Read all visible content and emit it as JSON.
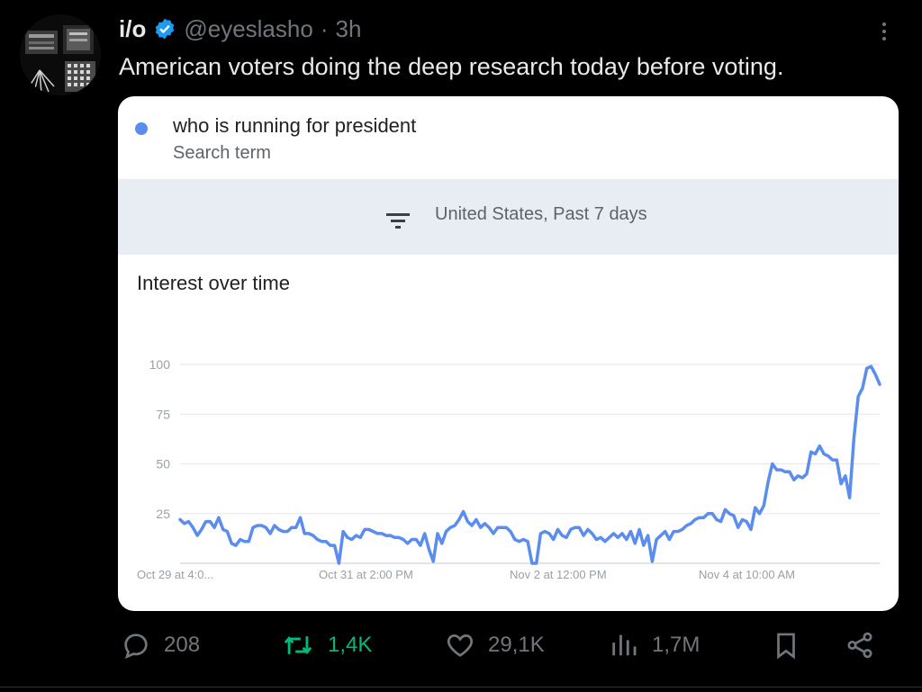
{
  "post": {
    "name": "i/o",
    "handle": "@eyeslasho",
    "separator": "·",
    "time": "3h",
    "text": "American voters doing the deep research today before voting."
  },
  "card": {
    "search_term": "who is running for president",
    "search_term_sub": "Search term",
    "filter_text": "United States, Past 7 days",
    "chart_title": "Interest over time"
  },
  "chart_data": {
    "type": "line",
    "title": "Interest over time",
    "series": [
      {
        "name": "who is running for president",
        "color": "#5b8def",
        "values": [
          22,
          20,
          21,
          18,
          14,
          17,
          21,
          21,
          18,
          23,
          17,
          16,
          10,
          9,
          12,
          11,
          11,
          18,
          19,
          19,
          18,
          15,
          19,
          17,
          16,
          16,
          18,
          18,
          23,
          15,
          15,
          14,
          12,
          11,
          11,
          9,
          9,
          0,
          16,
          13,
          12,
          14,
          13,
          17,
          17,
          16,
          15,
          15,
          14,
          14,
          13,
          13,
          12,
          10,
          12,
          12,
          9,
          15,
          7,
          1,
          15,
          10,
          16,
          18,
          19,
          22,
          26,
          21,
          19,
          22,
          18,
          20,
          18,
          15,
          18,
          18,
          18,
          16,
          12,
          11,
          12,
          11,
          0,
          0,
          15,
          16,
          15,
          12,
          17,
          14,
          13,
          17,
          18,
          18,
          14,
          17,
          15,
          12,
          13,
          11,
          13,
          15,
          13,
          15,
          12,
          16,
          10,
          17,
          9,
          14,
          1,
          12,
          14,
          16,
          12,
          16,
          16,
          17,
          19,
          20,
          22,
          23,
          23,
          25,
          25,
          22,
          21,
          27,
          25,
          24,
          18,
          22,
          21,
          17,
          28,
          25,
          29,
          41,
          50,
          47,
          47,
          46,
          46,
          42,
          44,
          43,
          45,
          56,
          55,
          59,
          55,
          54,
          52,
          52,
          40,
          44,
          33,
          63,
          84,
          88,
          98,
          99,
          95,
          90
        ]
      }
    ],
    "x_tick_labels": [
      "Oct 29 at 4:0...",
      "Oct 31 at 2:00 PM",
      "Nov 2 at 12:00 PM",
      "Nov 4 at 10:00 AM"
    ],
    "y_tick_labels": [
      "100",
      "75",
      "50",
      "25"
    ],
    "ylim": [
      0,
      100
    ],
    "grid": true
  },
  "actions": {
    "replies": "208",
    "reposts": "1,4K",
    "likes": "29,1K",
    "views": "1,7M"
  },
  "colors": {
    "background": "#000000",
    "verified_blue": "#1d9bf0",
    "repost_green": "#00ba7c",
    "muted": "#71767b",
    "series_blue": "#5b8def"
  },
  "icons": {
    "reply": "reply-icon",
    "repost": "repost-icon",
    "like": "heart-icon",
    "views": "views-icon",
    "bookmark": "bookmark-icon",
    "share": "share-icon",
    "verified": "verified-badge-icon",
    "more": "more-icon",
    "filter": "filter-icon"
  }
}
